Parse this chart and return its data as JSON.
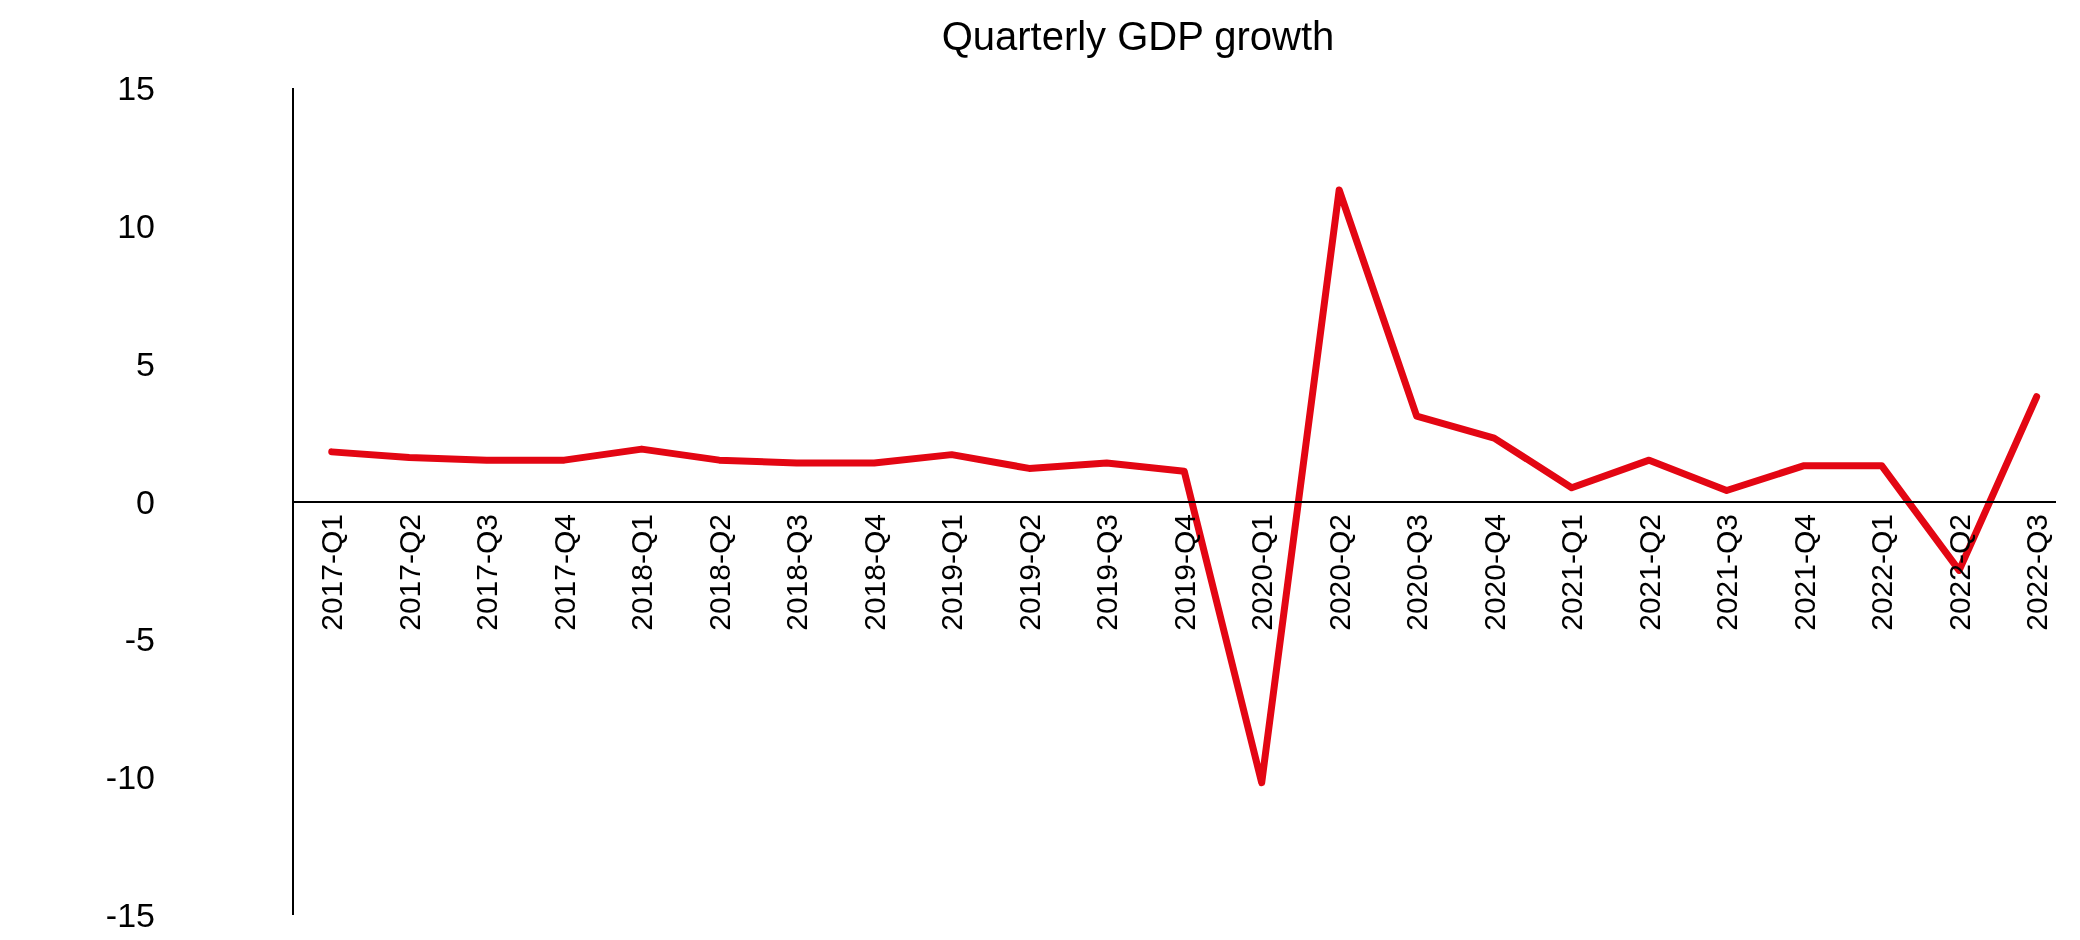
{
  "chart_data": {
    "type": "line",
    "title": "Quarterly GDP growth",
    "categories": [
      "2017-Q1",
      "2017-Q2",
      "2017-Q3",
      "2017-Q4",
      "2018-Q1",
      "2018-Q2",
      "2018-Q3",
      "2018-Q4",
      "2019-Q1",
      "2019-Q2",
      "2019-Q3",
      "2019-Q4",
      "2020-Q1",
      "2020-Q2",
      "2020-Q3",
      "2020-Q4",
      "2021-Q1",
      "2021-Q2",
      "2021-Q3",
      "2021-Q4",
      "2022-Q1",
      "2022-Q2",
      "2022-Q3"
    ],
    "series": [
      {
        "color": "#e30613",
        "values": [
          1.8,
          1.6,
          1.5,
          1.5,
          1.9,
          1.5,
          1.4,
          1.4,
          1.7,
          1.2,
          1.4,
          1.1,
          -10.2,
          11.3,
          3.1,
          2.3,
          0.5,
          1.5,
          0.4,
          1.3,
          1.3,
          -2.5,
          3.8
        ]
      }
    ],
    "ylim": [
      -15,
      15
    ],
    "yticks": [
      -15,
      -10,
      -5,
      0,
      5,
      10,
      15
    ],
    "grid": false,
    "legend": false,
    "marker": "none",
    "line_style": "solid"
  }
}
